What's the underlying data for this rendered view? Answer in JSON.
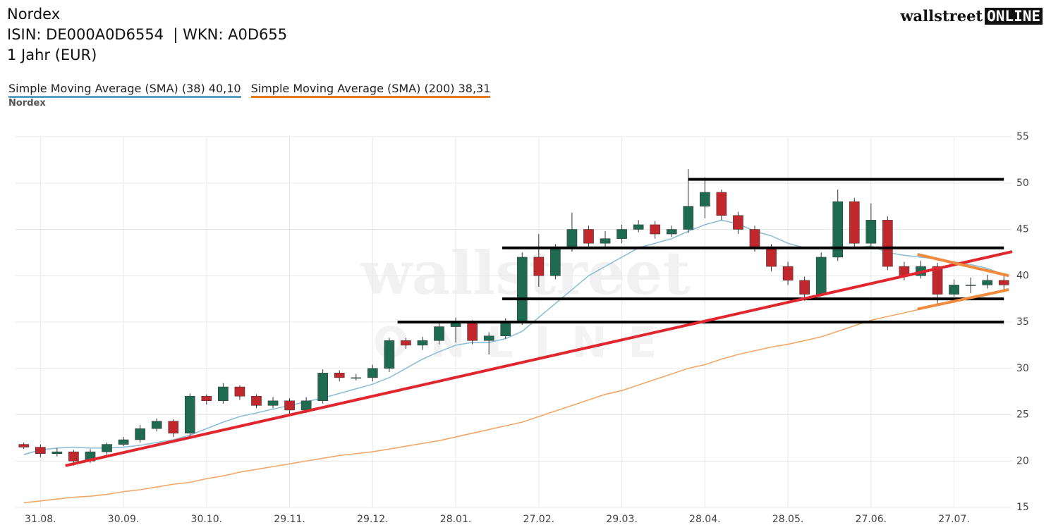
{
  "header": {
    "title": "Nordex",
    "ids": "ISIN: DE000A0D6554  | WKN: A0D655",
    "period": "1 Jahr (EUR)",
    "logo_left": "wallstreet",
    "logo_right": "ONLINE",
    "instrument": "Nordex",
    "watermark_top": "wallstreet",
    "watermark_bottom": "ONLINE"
  },
  "chart_data": {
    "type": "candlestick",
    "categories": [
      null,
      "31.08.",
      null,
      null,
      null,
      null,
      "30.09.",
      null,
      null,
      null,
      null,
      "30.10.",
      null,
      null,
      null,
      null,
      "29.11.",
      null,
      null,
      null,
      null,
      "29.12.",
      null,
      null,
      null,
      null,
      "28.01.",
      null,
      null,
      null,
      null,
      "27.02.",
      null,
      null,
      null,
      null,
      "29.03.",
      null,
      null,
      null,
      null,
      "28.04.",
      null,
      null,
      null,
      null,
      "28.05.",
      null,
      null,
      null,
      null,
      "27.06.",
      null,
      null,
      null,
      null,
      "27.07.",
      null,
      null,
      null
    ],
    "open": [
      21.8,
      21.5,
      20.8,
      21,
      20,
      21,
      21.8,
      22.3,
      23.5,
      24.3,
      23,
      27,
      26.5,
      28,
      27,
      26,
      26.5,
      25.5,
      26.5,
      29.5,
      29,
      29,
      30,
      33,
      32.5,
      33,
      34.5,
      35,
      33,
      33.5,
      35,
      42,
      40,
      43,
      45,
      43.5,
      44,
      45,
      45.5,
      44.5,
      45,
      47.5,
      49,
      46.5,
      45,
      43,
      41,
      39.5,
      38,
      42,
      48,
      43.5,
      46,
      41,
      40,
      41,
      38,
      39,
      39,
      39.5
    ],
    "high": [
      22,
      21.8,
      21.4,
      21.2,
      21.3,
      22,
      22.6,
      23.9,
      24.6,
      24.5,
      27.3,
      27.2,
      28.4,
      28.2,
      27.2,
      26.9,
      26.8,
      26.9,
      29.9,
      29.8,
      29.4,
      30.4,
      33.3,
      33.3,
      33.4,
      34.9,
      35.5,
      35.2,
      33.9,
      35.4,
      42.5,
      44.5,
      43.4,
      46.8,
      45.4,
      44.8,
      45.5,
      46,
      45.9,
      45.4,
      51.5,
      50.6,
      49.3,
      46.9,
      45.4,
      43.4,
      41.5,
      39.9,
      42.5,
      49.3,
      48.4,
      47.8,
      46.4,
      41.5,
      41.6,
      41.4,
      39.6,
      39.8,
      40.1,
      40
    ],
    "low": [
      21.3,
      20.4,
      20.5,
      19.5,
      19.8,
      20.7,
      21.6,
      22,
      23.2,
      22.6,
      22.5,
      26.1,
      26.2,
      26.6,
      25.7,
      25.7,
      25.1,
      25.2,
      26.2,
      28.6,
      28.7,
      28.6,
      29.6,
      32.1,
      32,
      32.6,
      32.8,
      32.6,
      31.5,
      33.2,
      34.7,
      38.8,
      39.6,
      42.6,
      43.1,
      42.9,
      43.5,
      44.7,
      44,
      44.2,
      44.6,
      46.2,
      46,
      44.5,
      42.6,
      40.5,
      39,
      37.3,
      37.8,
      41.6,
      43,
      43.2,
      40.6,
      39.5,
      39.7,
      37,
      37.7,
      38.1,
      38.6,
      38.5
    ],
    "close": [
      21.5,
      20.8,
      21,
      20,
      21,
      21.8,
      22.3,
      23.5,
      24.3,
      23,
      27,
      26.5,
      28,
      27,
      26,
      26.5,
      25.5,
      26.5,
      29.5,
      29,
      29,
      30,
      33,
      32.5,
      33,
      34.5,
      35,
      33,
      33.5,
      35,
      42,
      40,
      43,
      45,
      43.5,
      44,
      45,
      45.5,
      44.5,
      45,
      47.5,
      49,
      46.5,
      45,
      43,
      41,
      39.5,
      38,
      42,
      48,
      43.5,
      46,
      41,
      40,
      41,
      38,
      39,
      39,
      39.5,
      39
    ],
    "up_color": "#1e6b52",
    "down_color": "#c0282d",
    "series": [
      {
        "name": "Simple Moving Average (SMA) (38) 40,10",
        "color": "#8fbfd6",
        "legend_color": "#5a9ec0",
        "values": [
          20.7,
          21.2,
          21.4,
          21.5,
          21.4,
          21.4,
          21.5,
          21.7,
          22,
          22.3,
          22.8,
          23.5,
          24.2,
          24.8,
          25.2,
          25.6,
          26,
          26.4,
          26.8,
          27.3,
          27.8,
          28.3,
          29,
          30,
          31,
          31.8,
          32.5,
          32.8,
          32.8,
          33.2,
          34,
          35.5,
          37,
          38.5,
          40,
          41,
          42,
          43,
          43.5,
          44,
          44.8,
          45.5,
          46,
          45.6,
          44.8,
          44.3,
          43.5,
          43,
          43,
          43.2,
          43,
          43.2,
          42.5,
          42.2,
          42,
          41.8,
          41.5,
          41.2,
          40.8,
          40.1
        ]
      },
      {
        "name": "Simple Moving Average (SMA) (200) 38,31",
        "color": "#f0a868",
        "legend_color": "#e07a1e",
        "values": [
          15.5,
          15.7,
          15.9,
          16.1,
          16.2,
          16.4,
          16.7,
          16.9,
          17.2,
          17.5,
          17.7,
          18.1,
          18.4,
          18.8,
          19.1,
          19.4,
          19.7,
          20,
          20.3,
          20.6,
          20.8,
          21,
          21.3,
          21.6,
          21.9,
          22.2,
          22.6,
          23,
          23.4,
          23.8,
          24.2,
          24.8,
          25.4,
          26,
          26.6,
          27.2,
          27.6,
          28.2,
          28.8,
          29.4,
          30,
          30.4,
          31,
          31.5,
          31.9,
          32.3,
          32.6,
          33,
          33.4,
          34,
          34.6,
          35.2,
          35.6,
          36,
          36.4,
          36.8,
          37.2,
          37.6,
          37.9,
          38.3
        ]
      }
    ],
    "drawings": [
      {
        "x": [
          40.5,
          59.5
        ],
        "y": [
          50.4,
          50.4
        ],
        "color": "#000000"
      },
      {
        "x": [
          29.3,
          59.5
        ],
        "y": [
          43,
          43
        ],
        "color": "#000000"
      },
      {
        "x": [
          29.3,
          59.5
        ],
        "y": [
          37.5,
          37.5
        ],
        "color": "#000000"
      },
      {
        "x": [
          23,
          59.5
        ],
        "y": [
          35,
          35
        ],
        "color": "#000000"
      },
      {
        "x": [
          3,
          60
        ],
        "y": [
          19.5,
          42.6
        ],
        "color": "#e0262e"
      },
      {
        "x": [
          54.3,
          59.8
        ],
        "y": [
          42.3,
          40
        ],
        "color": "#f08a3c"
      },
      {
        "x": [
          54.3,
          59.8
        ],
        "y": [
          36.4,
          38.5
        ],
        "color": "#f08a3c"
      }
    ],
    "ylim": [
      15,
      55
    ],
    "yticks": [
      15,
      20,
      25,
      30,
      35,
      40,
      45,
      50,
      55
    ],
    "grid": true
  }
}
